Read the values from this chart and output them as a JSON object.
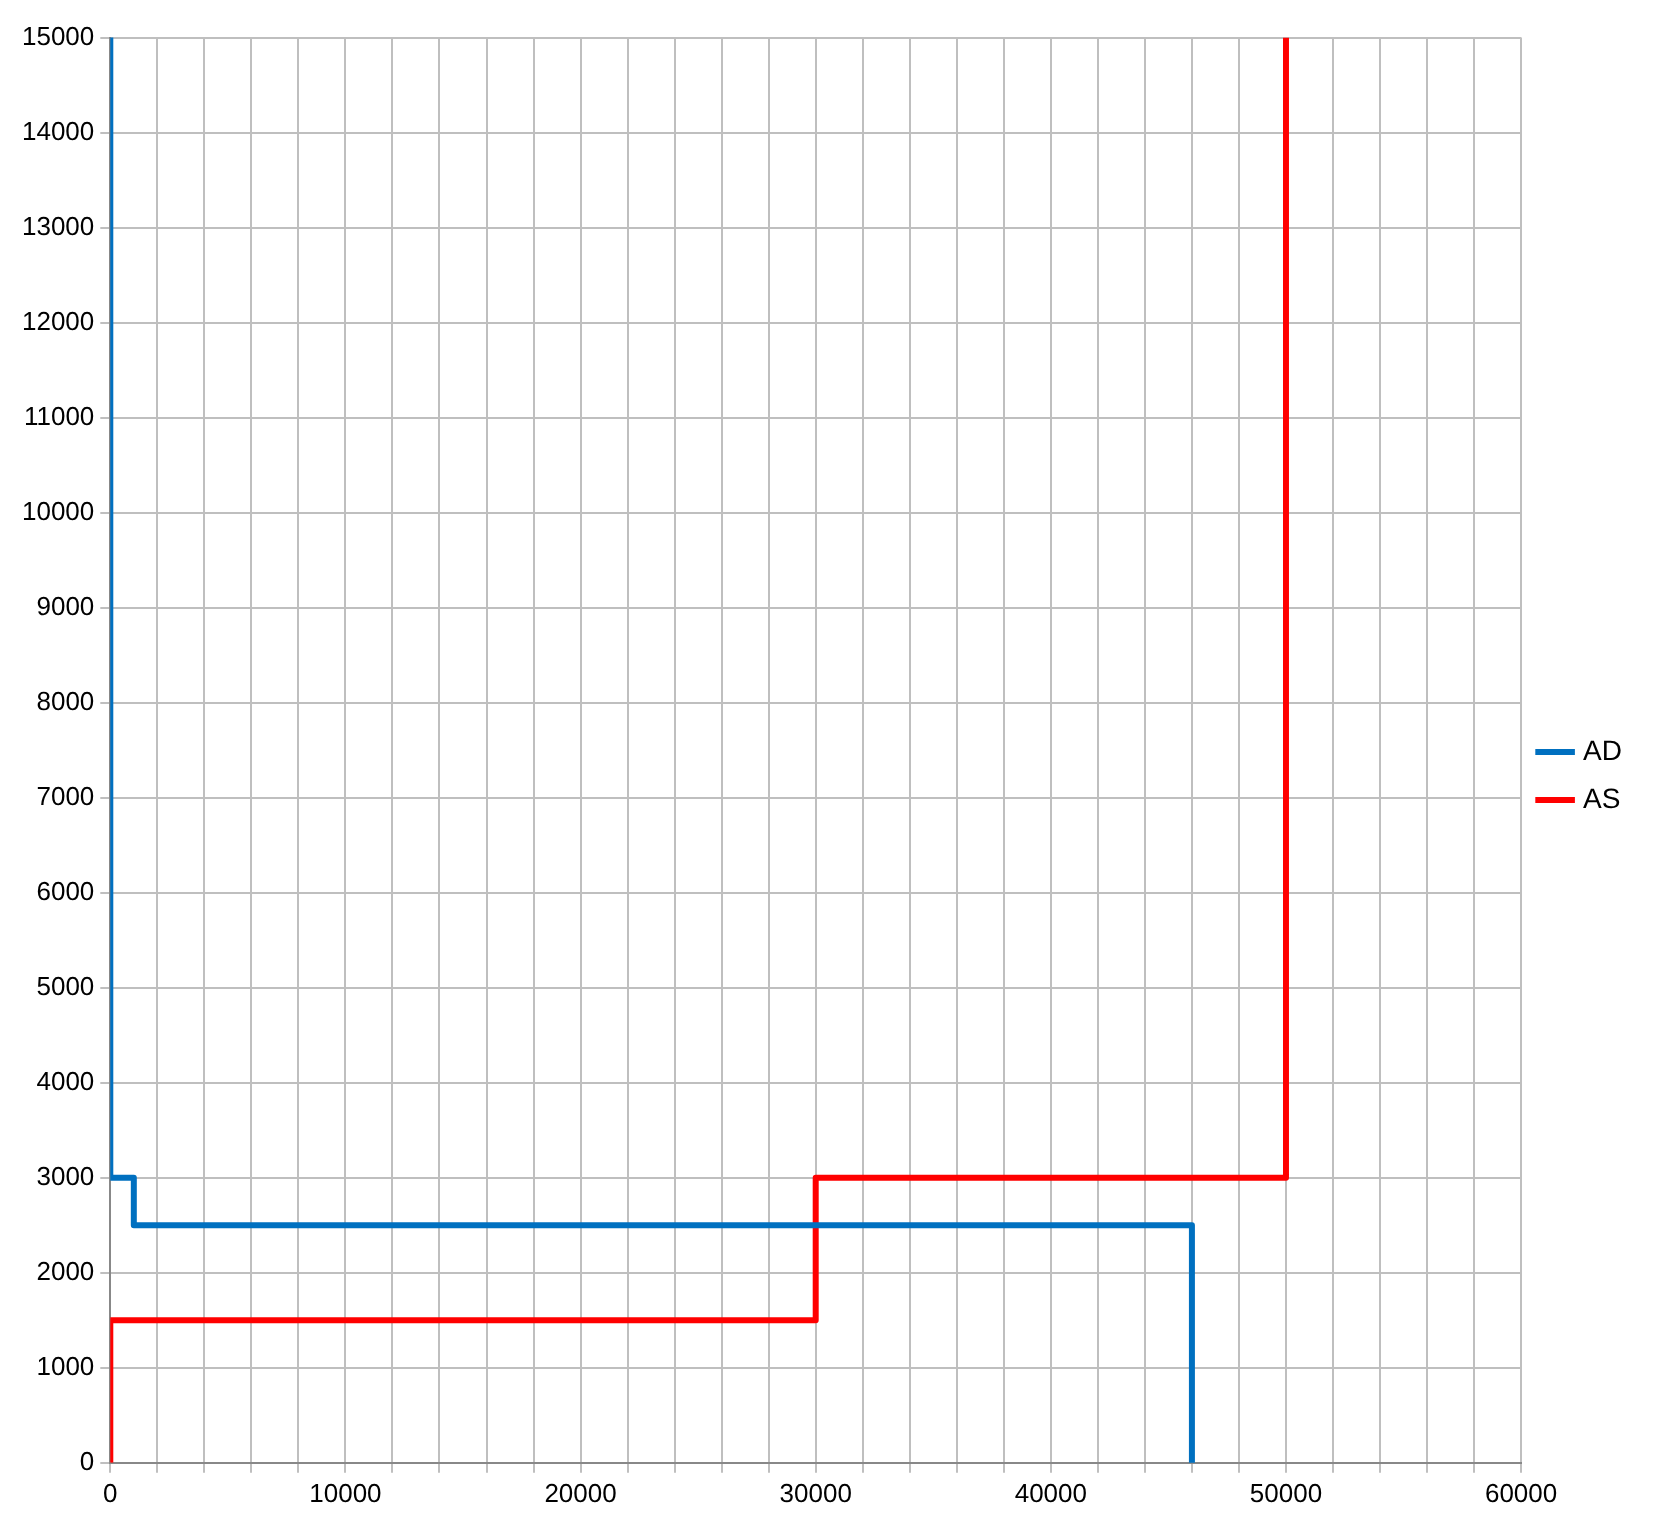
{
  "chart_data": {
    "type": "line",
    "xlim": [
      0,
      60000
    ],
    "ylim": [
      0,
      15000
    ],
    "xticks": [
      0,
      {
        "value": 2000,
        "label": null
      },
      {
        "value": 4000,
        "label": null
      },
      {
        "value": 6000,
        "label": null
      },
      {
        "value": 8000,
        "label": null
      },
      10000,
      {
        "value": 12000,
        "label": null
      },
      {
        "value": 14000,
        "label": null
      },
      {
        "value": 16000,
        "label": null
      },
      {
        "value": 18000,
        "label": null
      },
      20000,
      {
        "value": 22000,
        "label": null
      },
      {
        "value": 24000,
        "label": null
      },
      {
        "value": 26000,
        "label": null
      },
      {
        "value": 28000,
        "label": null
      },
      30000,
      {
        "value": 32000,
        "label": null
      },
      {
        "value": 34000,
        "label": null
      },
      {
        "value": 36000,
        "label": null
      },
      {
        "value": 38000,
        "label": null
      },
      40000,
      {
        "value": 42000,
        "label": null
      },
      {
        "value": 44000,
        "label": null
      },
      {
        "value": 46000,
        "label": null
      },
      {
        "value": 48000,
        "label": null
      },
      50000,
      {
        "value": 52000,
        "label": null
      },
      {
        "value": 54000,
        "label": null
      },
      {
        "value": 56000,
        "label": null
      },
      {
        "value": 58000,
        "label": null
      },
      60000
    ],
    "yticks": [
      0,
      1000,
      2000,
      3000,
      4000,
      5000,
      6000,
      7000,
      8000,
      9000,
      10000,
      11000,
      12000,
      13000,
      14000,
      15000
    ],
    "grid": true,
    "legend": "right",
    "marker": "none",
    "line_style": "solid",
    "series": [
      {
        "name": "AD",
        "color": "#0070c0",
        "x": [
          0,
          0,
          1000,
          1000,
          46000,
          46000
        ],
        "values": [
          15000,
          3000,
          3000,
          2500,
          2500,
          0
        ]
      },
      {
        "name": "AS",
        "color": "#ff0000",
        "x": [
          0,
          0,
          30000,
          30000,
          50000,
          50000
        ],
        "values": [
          0,
          1500,
          1500,
          3000,
          3000,
          15000
        ]
      }
    ]
  }
}
